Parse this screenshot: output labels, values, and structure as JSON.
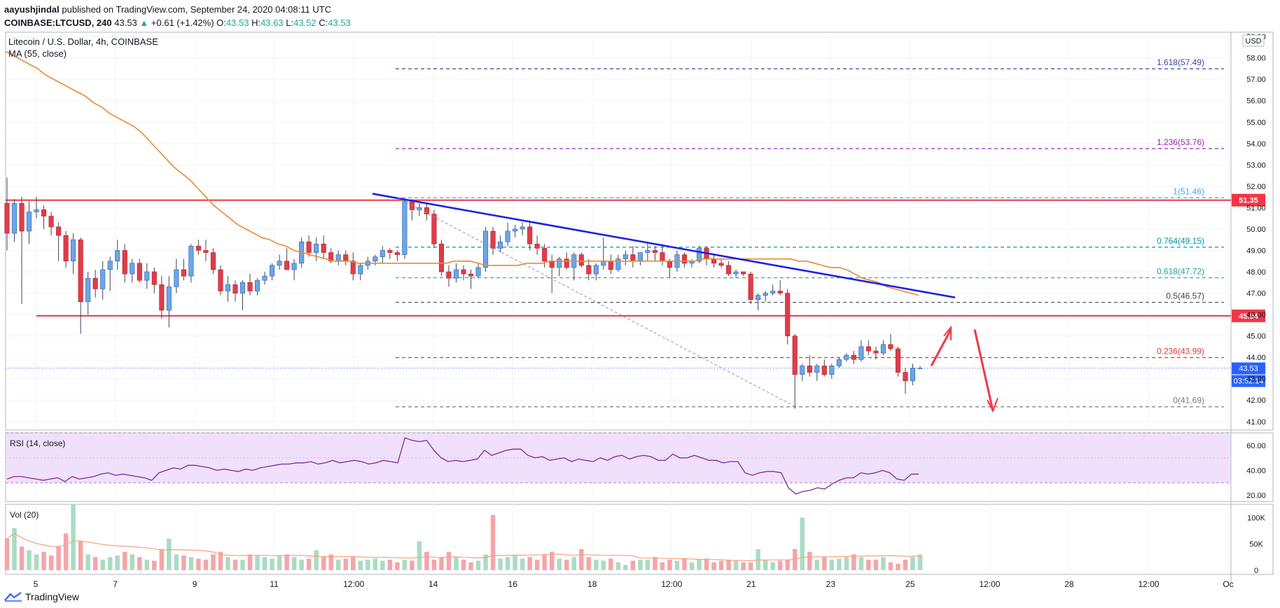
{
  "header": {
    "author": "aayushjindal",
    "published": "published on TradingView.com, September 24, 2020 04:08:11 UTC",
    "symbol": "COINBASE:LTCUSD, 240",
    "last": "43.53",
    "change": "+0.61 (+1.42%)",
    "o_label": "O:",
    "o": "43.53",
    "h_label": "H:",
    "h": "43.63",
    "l_label": "L:",
    "l": "43.52",
    "c_label": "C:",
    "c": "43.53"
  },
  "chart_data": {
    "type": "candlestick",
    "title": "Litecoin / U.S. Dollar, 4h, COINBASE",
    "indicator_label": "MA (55, close)",
    "currency": "USD",
    "x_ticks": [
      "5",
      "7",
      "9",
      "11",
      "12:00",
      "14",
      "16",
      "18",
      "12:00",
      "21",
      "23",
      "25",
      "12:00",
      "28",
      "12:00",
      "Oc"
    ],
    "y_ticks": [
      "41.00",
      "42.00",
      "43.00",
      "44.00",
      "45.00",
      "46.00",
      "47.00",
      "48.00",
      "49.00",
      "50.00",
      "51.00",
      "52.00",
      "53.00",
      "54.00",
      "55.00",
      "56.00",
      "57.00",
      "58.00",
      "59.00"
    ],
    "y_range": [
      40.6,
      59.2
    ],
    "candles": [
      {
        "o": 51.2,
        "h": 52.4,
        "l": 49.0,
        "c": 49.8
      },
      {
        "o": 49.8,
        "h": 51.4,
        "l": 49.4,
        "c": 51.2
      },
      {
        "o": 51.2,
        "h": 51.5,
        "l": 46.5,
        "c": 49.9
      },
      {
        "o": 49.9,
        "h": 51.3,
        "l": 49.3,
        "c": 50.8
      },
      {
        "o": 50.8,
        "h": 51.5,
        "l": 50.5,
        "c": 50.9
      },
      {
        "o": 50.9,
        "h": 51.1,
        "l": 50.0,
        "c": 50.6
      },
      {
        "o": 50.6,
        "h": 50.8,
        "l": 49.7,
        "c": 50.1
      },
      {
        "o": 50.1,
        "h": 50.3,
        "l": 48.5,
        "c": 49.7
      },
      {
        "o": 49.7,
        "h": 49.9,
        "l": 48.2,
        "c": 48.5
      },
      {
        "o": 48.5,
        "h": 49.8,
        "l": 47.9,
        "c": 49.5
      },
      {
        "o": 49.5,
        "h": 49.6,
        "l": 45.1,
        "c": 46.6
      },
      {
        "o": 46.6,
        "h": 48.0,
        "l": 46.0,
        "c": 47.7
      },
      {
        "o": 47.7,
        "h": 48.1,
        "l": 46.8,
        "c": 47.2
      },
      {
        "o": 47.2,
        "h": 48.5,
        "l": 46.7,
        "c": 48.1
      },
      {
        "o": 48.1,
        "h": 48.7,
        "l": 47.1,
        "c": 48.5
      },
      {
        "o": 48.5,
        "h": 49.5,
        "l": 48.1,
        "c": 49.0
      },
      {
        "o": 49.0,
        "h": 49.3,
        "l": 47.5,
        "c": 47.9
      },
      {
        "o": 47.9,
        "h": 48.6,
        "l": 47.5,
        "c": 48.4
      },
      {
        "o": 48.4,
        "h": 48.6,
        "l": 47.5,
        "c": 47.6
      },
      {
        "o": 47.6,
        "h": 48.4,
        "l": 47.2,
        "c": 48.0
      },
      {
        "o": 48.0,
        "h": 48.2,
        "l": 47.0,
        "c": 47.4
      },
      {
        "o": 47.4,
        "h": 47.8,
        "l": 45.8,
        "c": 46.2
      },
      {
        "o": 46.2,
        "h": 47.8,
        "l": 45.4,
        "c": 47.3
      },
      {
        "o": 47.3,
        "h": 48.6,
        "l": 47.0,
        "c": 48.1
      },
      {
        "o": 48.1,
        "h": 48.6,
        "l": 47.6,
        "c": 47.8
      },
      {
        "o": 47.8,
        "h": 49.3,
        "l": 47.5,
        "c": 49.2
      },
      {
        "o": 49.2,
        "h": 49.5,
        "l": 48.8,
        "c": 49.0
      },
      {
        "o": 49.0,
        "h": 49.5,
        "l": 48.5,
        "c": 48.9
      },
      {
        "o": 48.9,
        "h": 49.1,
        "l": 47.9,
        "c": 48.1
      },
      {
        "o": 48.1,
        "h": 48.3,
        "l": 46.9,
        "c": 47.1
      },
      {
        "o": 47.1,
        "h": 47.8,
        "l": 46.6,
        "c": 47.4
      },
      {
        "o": 47.4,
        "h": 47.6,
        "l": 46.6,
        "c": 47.0
      },
      {
        "o": 47.0,
        "h": 47.6,
        "l": 46.2,
        "c": 47.5
      },
      {
        "o": 47.5,
        "h": 47.9,
        "l": 46.9,
        "c": 47.1
      },
      {
        "o": 47.1,
        "h": 47.7,
        "l": 46.9,
        "c": 47.6
      },
      {
        "o": 47.6,
        "h": 48.0,
        "l": 47.4,
        "c": 47.8
      },
      {
        "o": 47.8,
        "h": 48.4,
        "l": 47.6,
        "c": 48.3
      },
      {
        "o": 48.3,
        "h": 48.8,
        "l": 48.1,
        "c": 48.5
      },
      {
        "o": 48.5,
        "h": 49.1,
        "l": 48.2,
        "c": 48.1
      },
      {
        "o": 48.1,
        "h": 48.6,
        "l": 47.6,
        "c": 48.4
      },
      {
        "o": 48.4,
        "h": 49.6,
        "l": 48.2,
        "c": 49.4
      },
      {
        "o": 49.4,
        "h": 49.7,
        "l": 48.7,
        "c": 48.9
      },
      {
        "o": 48.9,
        "h": 49.6,
        "l": 48.5,
        "c": 49.3
      },
      {
        "o": 49.3,
        "h": 49.7,
        "l": 48.6,
        "c": 48.9
      },
      {
        "o": 48.9,
        "h": 49.1,
        "l": 48.4,
        "c": 48.5
      },
      {
        "o": 48.5,
        "h": 49.0,
        "l": 48.3,
        "c": 48.8
      },
      {
        "o": 48.8,
        "h": 49.0,
        "l": 48.3,
        "c": 48.5
      },
      {
        "o": 48.5,
        "h": 48.9,
        "l": 47.6,
        "c": 47.9
      },
      {
        "o": 47.9,
        "h": 48.4,
        "l": 47.6,
        "c": 48.3
      },
      {
        "o": 48.3,
        "h": 48.7,
        "l": 48.1,
        "c": 48.5
      },
      {
        "o": 48.5,
        "h": 48.8,
        "l": 48.3,
        "c": 48.7
      },
      {
        "o": 48.7,
        "h": 49.2,
        "l": 48.4,
        "c": 49.0
      },
      {
        "o": 49.0,
        "h": 49.1,
        "l": 48.6,
        "c": 48.9
      },
      {
        "o": 48.9,
        "h": 49.0,
        "l": 48.5,
        "c": 48.8
      },
      {
        "o": 48.8,
        "h": 51.4,
        "l": 48.6,
        "c": 51.3
      },
      {
        "o": 51.3,
        "h": 51.4,
        "l": 50.4,
        "c": 50.9
      },
      {
        "o": 50.9,
        "h": 51.2,
        "l": 50.6,
        "c": 51.0
      },
      {
        "o": 51.0,
        "h": 51.2,
        "l": 50.4,
        "c": 50.7
      },
      {
        "o": 50.7,
        "h": 50.9,
        "l": 49.1,
        "c": 49.3
      },
      {
        "o": 49.3,
        "h": 49.5,
        "l": 47.8,
        "c": 48.0
      },
      {
        "o": 48.0,
        "h": 48.3,
        "l": 47.3,
        "c": 47.7
      },
      {
        "o": 47.7,
        "h": 48.4,
        "l": 47.5,
        "c": 48.1
      },
      {
        "o": 48.1,
        "h": 48.3,
        "l": 47.6,
        "c": 47.9
      },
      {
        "o": 47.9,
        "h": 48.1,
        "l": 47.2,
        "c": 47.8
      },
      {
        "o": 47.8,
        "h": 48.4,
        "l": 47.7,
        "c": 48.2
      },
      {
        "o": 48.2,
        "h": 50.1,
        "l": 48.0,
        "c": 49.9
      },
      {
        "o": 49.9,
        "h": 50.1,
        "l": 48.8,
        "c": 49.1
      },
      {
        "o": 49.1,
        "h": 49.7,
        "l": 48.9,
        "c": 49.4
      },
      {
        "o": 49.4,
        "h": 50.3,
        "l": 49.2,
        "c": 49.9
      },
      {
        "o": 49.9,
        "h": 50.2,
        "l": 49.6,
        "c": 50.0
      },
      {
        "o": 50.0,
        "h": 50.3,
        "l": 49.7,
        "c": 50.1
      },
      {
        "o": 50.1,
        "h": 50.4,
        "l": 49.0,
        "c": 49.3
      },
      {
        "o": 49.3,
        "h": 49.7,
        "l": 48.8,
        "c": 49.1
      },
      {
        "o": 49.1,
        "h": 49.3,
        "l": 48.2,
        "c": 48.5
      },
      {
        "o": 48.5,
        "h": 48.8,
        "l": 47.0,
        "c": 48.2
      },
      {
        "o": 48.2,
        "h": 48.7,
        "l": 47.8,
        "c": 48.6
      },
      {
        "o": 48.6,
        "h": 48.9,
        "l": 48.1,
        "c": 48.2
      },
      {
        "o": 48.2,
        "h": 48.9,
        "l": 47.6,
        "c": 48.8
      },
      {
        "o": 48.8,
        "h": 48.9,
        "l": 48.2,
        "c": 48.3
      },
      {
        "o": 48.3,
        "h": 48.6,
        "l": 47.6,
        "c": 47.9
      },
      {
        "o": 47.9,
        "h": 48.4,
        "l": 47.6,
        "c": 48.3
      },
      {
        "o": 48.3,
        "h": 49.6,
        "l": 48.1,
        "c": 48.5
      },
      {
        "o": 48.5,
        "h": 48.8,
        "l": 47.9,
        "c": 48.1
      },
      {
        "o": 48.1,
        "h": 48.8,
        "l": 48.0,
        "c": 48.6
      },
      {
        "o": 48.6,
        "h": 49.0,
        "l": 48.3,
        "c": 48.8
      },
      {
        "o": 48.8,
        "h": 49.2,
        "l": 48.2,
        "c": 48.5
      },
      {
        "o": 48.5,
        "h": 48.9,
        "l": 48.3,
        "c": 48.9
      },
      {
        "o": 48.9,
        "h": 49.4,
        "l": 48.5,
        "c": 49.0
      },
      {
        "o": 49.0,
        "h": 49.2,
        "l": 48.5,
        "c": 48.9
      },
      {
        "o": 48.9,
        "h": 49.3,
        "l": 48.3,
        "c": 48.5
      },
      {
        "o": 48.5,
        "h": 48.6,
        "l": 47.7,
        "c": 48.2
      },
      {
        "o": 48.2,
        "h": 49.0,
        "l": 48.0,
        "c": 48.8
      },
      {
        "o": 48.8,
        "h": 48.9,
        "l": 48.2,
        "c": 48.4
      },
      {
        "o": 48.4,
        "h": 48.6,
        "l": 48.2,
        "c": 48.5
      },
      {
        "o": 48.5,
        "h": 49.2,
        "l": 48.4,
        "c": 49.1
      },
      {
        "o": 49.1,
        "h": 49.2,
        "l": 48.3,
        "c": 48.6
      },
      {
        "o": 48.6,
        "h": 48.8,
        "l": 48.2,
        "c": 48.4
      },
      {
        "o": 48.4,
        "h": 48.6,
        "l": 48.2,
        "c": 48.3
      },
      {
        "o": 48.3,
        "h": 48.5,
        "l": 47.8,
        "c": 47.9
      },
      {
        "o": 47.9,
        "h": 48.1,
        "l": 47.7,
        "c": 48.0
      },
      {
        "o": 48.0,
        "h": 48.0,
        "l": 47.8,
        "c": 47.9
      },
      {
        "o": 47.9,
        "h": 48.0,
        "l": 46.5,
        "c": 46.7
      },
      {
        "o": 46.7,
        "h": 47.0,
        "l": 46.2,
        "c": 46.9
      },
      {
        "o": 46.9,
        "h": 47.1,
        "l": 46.6,
        "c": 47.0
      },
      {
        "o": 47.0,
        "h": 47.4,
        "l": 46.9,
        "c": 47.1
      },
      {
        "o": 47.1,
        "h": 47.6,
        "l": 46.9,
        "c": 47.0
      },
      {
        "o": 47.0,
        "h": 47.2,
        "l": 44.6,
        "c": 45.0
      },
      {
        "o": 45.0,
        "h": 45.1,
        "l": 41.6,
        "c": 43.2
      },
      {
        "o": 43.2,
        "h": 43.7,
        "l": 42.9,
        "c": 43.6
      },
      {
        "o": 43.6,
        "h": 44.1,
        "l": 43.1,
        "c": 43.3
      },
      {
        "o": 43.3,
        "h": 43.7,
        "l": 42.9,
        "c": 43.6
      },
      {
        "o": 43.6,
        "h": 43.9,
        "l": 43.1,
        "c": 43.2
      },
      {
        "o": 43.2,
        "h": 43.7,
        "l": 43.0,
        "c": 43.6
      },
      {
        "o": 43.6,
        "h": 44.0,
        "l": 43.5,
        "c": 43.9
      },
      {
        "o": 43.9,
        "h": 44.2,
        "l": 43.8,
        "c": 44.1
      },
      {
        "o": 44.1,
        "h": 44.3,
        "l": 43.7,
        "c": 43.9
      },
      {
        "o": 43.9,
        "h": 44.8,
        "l": 43.8,
        "c": 44.5
      },
      {
        "o": 44.5,
        "h": 44.8,
        "l": 44.1,
        "c": 44.3
      },
      {
        "o": 44.3,
        "h": 44.5,
        "l": 43.9,
        "c": 44.2
      },
      {
        "o": 44.2,
        "h": 44.8,
        "l": 44.1,
        "c": 44.6
      },
      {
        "o": 44.6,
        "h": 45.1,
        "l": 44.3,
        "c": 44.4
      },
      {
        "o": 44.4,
        "h": 44.5,
        "l": 43.1,
        "c": 43.3
      },
      {
        "o": 43.3,
        "h": 43.5,
        "l": 42.3,
        "c": 42.9
      },
      {
        "o": 42.9,
        "h": 43.7,
        "l": 42.7,
        "c": 43.5
      },
      {
        "o": 43.5,
        "h": 43.6,
        "l": 43.5,
        "c": 43.5
      }
    ],
    "ma55": [
      58.3,
      58.1,
      57.9,
      57.7,
      57.5,
      57.2,
      57.0,
      56.8,
      56.6,
      56.4,
      56.2,
      55.9,
      55.7,
      55.4,
      55.2,
      55.0,
      54.8,
      54.5,
      54.1,
      53.7,
      53.3,
      52.9,
      52.6,
      52.3,
      51.9,
      51.5,
      51.1,
      50.8,
      50.5,
      50.2,
      50.0,
      49.8,
      49.6,
      49.5,
      49.3,
      49.2,
      49.0,
      48.9,
      48.8,
      48.7,
      48.6,
      48.5,
      48.5,
      48.5,
      48.4,
      48.4,
      48.4,
      48.4,
      48.4,
      48.4,
      48.4,
      48.4,
      48.4,
      48.4,
      48.4,
      48.4,
      48.5,
      48.5,
      48.5,
      48.4,
      48.3,
      48.3,
      48.3,
      48.3,
      48.3,
      48.4,
      48.4,
      48.4,
      48.5,
      48.5,
      48.5,
      48.5,
      48.5,
      48.5,
      48.5,
      48.5,
      48.5,
      48.5,
      48.5,
      48.5,
      48.5,
      48.5,
      48.5,
      48.5,
      48.5,
      48.5,
      48.5,
      48.6,
      48.6,
      48.6,
      48.6,
      48.6,
      48.6,
      48.6,
      48.6,
      48.6,
      48.6,
      48.6,
      48.6,
      48.5,
      48.5,
      48.4,
      48.3,
      48.2,
      48.2,
      48.1,
      47.9,
      47.7,
      47.6,
      47.5,
      47.3,
      47.2,
      47.1,
      47.0,
      46.9
    ],
    "horizontal_levels": [
      {
        "price": 51.35,
        "label": "51.35",
        "color": "#f23645"
      },
      {
        "price": 45.94,
        "label": "45.94",
        "color": "#f23645"
      }
    ],
    "fibonacci": [
      {
        "ratio": "1.618",
        "price": 57.49,
        "label": "1.618(57.49)",
        "color": "#3949ab"
      },
      {
        "ratio": "1.236",
        "price": 53.76,
        "label": "1.236(53.76)",
        "color": "#9c27b0"
      },
      {
        "ratio": "1",
        "price": 51.46,
        "label": "1(51.46)",
        "color": "#42a5f5"
      },
      {
        "ratio": "0.764",
        "price": 49.15,
        "label": "0.764(49.15)",
        "color": "#0097a7"
      },
      {
        "ratio": "0.618",
        "price": 47.72,
        "label": "0.618(47.72)",
        "color": "#26a69a"
      },
      {
        "ratio": "0.5",
        "price": 46.57,
        "label": "0.5(46.57)",
        "color": "#434651"
      },
      {
        "ratio": "0.236",
        "price": 43.99,
        "label": "0.236(43.99)",
        "color": "#e53935"
      },
      {
        "ratio": "0",
        "price": 41.69,
        "label": "0(41.69)",
        "color": "#787b86"
      }
    ],
    "trendline": {
      "from_price": 51.65,
      "to_price": 46.8,
      "color": "#1e22e6"
    },
    "price_badges": [
      {
        "label": "43.53",
        "color": "#2962ff"
      },
      {
        "label": "03:52:14",
        "color": "#2962ff"
      }
    ],
    "rsi": {
      "label": "RSI (14, close)",
      "y_ticks": [
        "20.00",
        "40.00",
        "60.00"
      ],
      "y_range": [
        15,
        70
      ],
      "bands": [
        30,
        70
      ],
      "values": [
        33,
        35,
        35,
        34,
        33,
        32,
        33,
        34,
        31,
        35,
        33,
        34,
        35,
        37,
        38,
        36,
        37,
        36,
        35,
        34,
        32,
        38,
        40,
        42,
        41,
        44,
        44,
        43,
        42,
        40,
        41,
        40,
        39,
        41,
        40,
        42,
        43,
        44,
        45,
        45,
        46,
        46,
        47,
        45,
        46,
        48,
        46,
        47,
        48,
        47,
        45,
        46,
        48,
        47,
        46,
        66,
        64,
        63,
        64,
        56,
        50,
        47,
        48,
        47,
        48,
        49,
        56,
        52,
        54,
        56,
        57,
        57,
        52,
        50,
        51,
        48,
        49,
        50,
        47,
        49,
        48,
        47,
        50,
        48,
        51,
        52,
        49,
        51,
        52,
        51,
        48,
        48,
        53,
        50,
        50,
        52,
        50,
        48,
        48,
        46,
        47,
        47,
        38,
        36,
        38,
        39,
        39,
        38,
        26,
        21,
        23,
        24,
        26,
        25,
        29,
        32,
        34,
        34,
        38,
        37,
        38,
        40,
        38,
        33,
        32,
        37,
        37
      ],
      "line_color": "#7e2b9a"
    },
    "volume": {
      "label": "Vol (20)",
      "y_ticks": [
        "0",
        "50K",
        "100K"
      ],
      "y_range": [
        0,
        120000
      ],
      "values": [
        60,
        80,
        45,
        38,
        30,
        35,
        28,
        45,
        70,
        125,
        55,
        30,
        25,
        20,
        25,
        28,
        35,
        30,
        25,
        20,
        18,
        40,
        60,
        30,
        28,
        25,
        22,
        20,
        30,
        35,
        25,
        20,
        20,
        30,
        28,
        25,
        22,
        28,
        30,
        25,
        20,
        22,
        38,
        25,
        30,
        20,
        22,
        25,
        18,
        20,
        22,
        18,
        20,
        15,
        20,
        18,
        55,
        35,
        20,
        25,
        35,
        25,
        20,
        15,
        18,
        30,
        105,
        22,
        25,
        28,
        22,
        25,
        20,
        30,
        35,
        22,
        20,
        25,
        40,
        25,
        20,
        18,
        22,
        15,
        10,
        18,
        20,
        20,
        25,
        15,
        20,
        18,
        22,
        15,
        20,
        22,
        15,
        18,
        20,
        18,
        15,
        15,
        40,
        20,
        15,
        18,
        20,
        40,
        100,
        35,
        20,
        25,
        20,
        22,
        25,
        30,
        25,
        20,
        20,
        25,
        15,
        12,
        20,
        25,
        30,
        15,
        5
      ]
    },
    "annotations": [
      {
        "type": "arrow-up",
        "color": "#f23645"
      },
      {
        "type": "arrow-down",
        "color": "#f23645"
      }
    ]
  },
  "footer": {
    "brand": "TradingView"
  }
}
